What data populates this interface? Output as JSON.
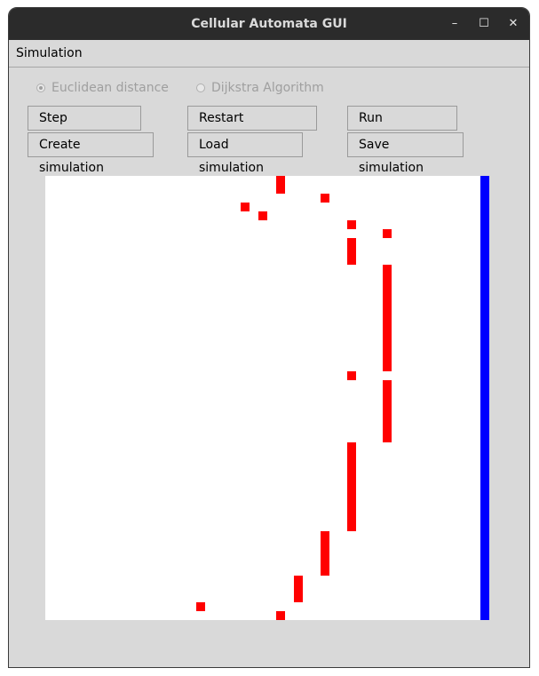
{
  "window": {
    "title": "Cellular Automata GUI",
    "controls": {
      "minimize": "–",
      "maximize": "☐",
      "close": "✕"
    }
  },
  "menu": {
    "simulation": "Simulation"
  },
  "radios": {
    "euclidean": {
      "label": "Euclidean distance",
      "selected": true,
      "enabled": false
    },
    "dijkstra": {
      "label": "Dijkstra Algorithm",
      "selected": false,
      "enabled": false
    }
  },
  "buttons": {
    "step": "Step simulation",
    "restart": "Restart simulation",
    "run": "Run simulation",
    "create": "Create simulation",
    "load": "Load simulation",
    "save": "Save simulation"
  },
  "grid": {
    "cols": 50,
    "rows": 50,
    "colors": {
      "empty": "#ffffff",
      "pedestrian": "#ff0000",
      "target": "#0000ff"
    },
    "target_cells": [
      {
        "col": 49,
        "row_start": 0,
        "row_end": 49
      }
    ],
    "pedestrian_cells": [
      [
        26,
        0
      ],
      [
        26,
        1
      ],
      [
        31,
        2
      ],
      [
        22,
        3
      ],
      [
        24,
        4
      ],
      [
        34,
        5
      ],
      [
        38,
        6
      ],
      [
        34,
        7
      ],
      [
        34,
        8
      ],
      [
        34,
        9
      ],
      [
        38,
        10
      ],
      [
        38,
        11
      ],
      [
        38,
        12
      ],
      [
        38,
        13
      ],
      [
        38,
        14
      ],
      [
        38,
        15
      ],
      [
        38,
        16
      ],
      [
        38,
        17
      ],
      [
        38,
        18
      ],
      [
        38,
        19
      ],
      [
        38,
        20
      ],
      [
        38,
        21
      ],
      [
        34,
        22
      ],
      [
        38,
        23
      ],
      [
        38,
        24
      ],
      [
        38,
        25
      ],
      [
        38,
        26
      ],
      [
        38,
        27
      ],
      [
        38,
        28
      ],
      [
        38,
        29
      ],
      [
        34,
        30
      ],
      [
        34,
        31
      ],
      [
        34,
        32
      ],
      [
        34,
        33
      ],
      [
        34,
        34
      ],
      [
        34,
        35
      ],
      [
        34,
        36
      ],
      [
        34,
        37
      ],
      [
        34,
        38
      ],
      [
        34,
        39
      ],
      [
        31,
        40
      ],
      [
        31,
        41
      ],
      [
        31,
        42
      ],
      [
        31,
        43
      ],
      [
        31,
        44
      ],
      [
        28,
        45
      ],
      [
        28,
        46
      ],
      [
        28,
        47
      ],
      [
        17,
        48
      ],
      [
        26,
        49
      ]
    ]
  }
}
